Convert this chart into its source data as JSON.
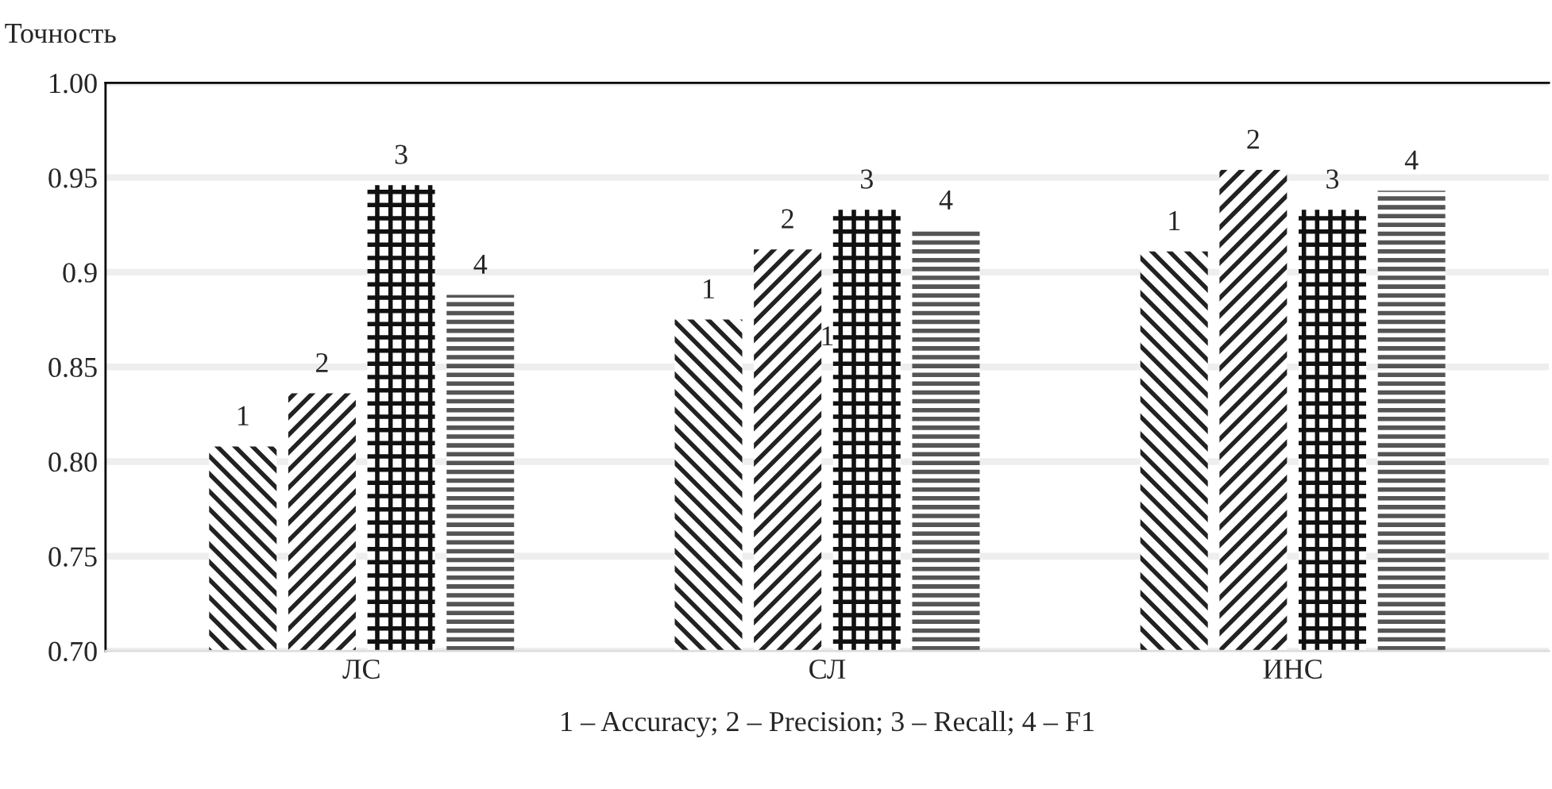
{
  "chart_data": {
    "type": "bar",
    "ylabel": "Точность",
    "xlabel": "1 – Accuracy; 2 – Precision; 3 – Recall; 4 – F1",
    "categories": [
      "ЛС",
      "СЛ",
      "ИНС"
    ],
    "series": [
      {
        "name": "1",
        "color": "#222222",
        "values": [
          0.808,
          0.875,
          0.911
        ]
      },
      {
        "name": "2",
        "color": "#222222",
        "values": [
          0.836,
          0.912,
          0.954
        ]
      },
      {
        "name": "3",
        "color": "#111111",
        "values": [
          0.946,
          0.933,
          0.933
        ]
      },
      {
        "name": "4",
        "color": "#555555",
        "values": [
          0.888,
          0.922,
          0.943
        ]
      }
    ],
    "annotations": [
      {
        "text": "1",
        "x": "СЛ",
        "y": 0.865
      }
    ],
    "ylim": [
      0.7,
      1.0
    ],
    "yticks": [
      {
        "value": 0.7,
        "label": "0.70"
      },
      {
        "value": 0.75,
        "label": "0.75"
      },
      {
        "value": 0.8,
        "label": "0.80"
      },
      {
        "value": 0.85,
        "label": "0.85"
      },
      0.9,
      0.95,
      {
        "value": 1.0,
        "label": "1.00"
      }
    ],
    "grid": "y",
    "legend": false
  }
}
